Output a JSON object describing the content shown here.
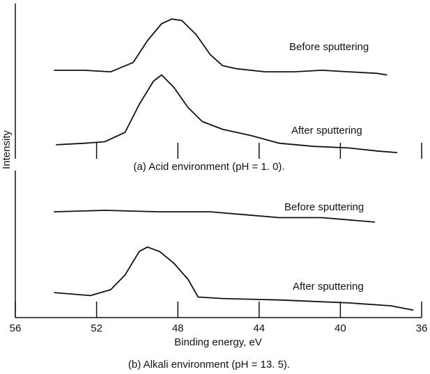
{
  "chart_data": [
    {
      "type": "line",
      "caption": "(a) Acid environment (pH = 1. 0).",
      "ylabel": "Intensity",
      "xlim": [
        56,
        36
      ],
      "xticks": [
        52,
        48,
        44,
        40,
        36
      ],
      "xtick_labels": false,
      "ylim": [
        0,
        100
      ],
      "series": [
        {
          "name": "Before sputtering",
          "color": "#111111",
          "x": [
            54.1,
            52.6,
            51.3,
            50.2,
            49.5,
            48.8,
            48.3,
            47.8,
            47.1,
            46.4,
            45.8,
            45.1,
            43.7,
            42.3,
            40.9,
            39.6,
            38.2,
            37.7
          ],
          "values": [
            57,
            57,
            56,
            62,
            76,
            87,
            90,
            89,
            80,
            67,
            60,
            58,
            56,
            56,
            57,
            56,
            55,
            54
          ]
        },
        {
          "name": "After sputtering",
          "color": "#111111",
          "x": [
            54.0,
            52.6,
            51.6,
            50.6,
            49.9,
            49.2,
            48.8,
            48.2,
            47.5,
            46.8,
            45.8,
            44.4,
            43.0,
            41.3,
            39.6,
            38.2,
            37.2
          ],
          "values": [
            9,
            10,
            11,
            17,
            35,
            50,
            54,
            46,
            33,
            24,
            19,
            15,
            10,
            8,
            7,
            5,
            4
          ]
        }
      ]
    },
    {
      "type": "line",
      "caption": "(b) Alkali environment (pH = 13. 5).",
      "xlabel": "Binding energy, eV",
      "xlim": [
        56,
        36
      ],
      "xticks": [
        56,
        52,
        48,
        44,
        40,
        36
      ],
      "xtick_labels": true,
      "ylim": [
        0,
        100
      ],
      "series": [
        {
          "name": "Before sputtering",
          "color": "#111111",
          "x": [
            54.1,
            51.6,
            48.9,
            46.4,
            44.7,
            43.0,
            40.9,
            38.3
          ],
          "values": [
            72,
            73,
            72,
            72,
            70,
            68,
            68,
            65
          ]
        },
        {
          "name": "After sputtering",
          "color": "#111111",
          "x": [
            54.1,
            52.3,
            51.3,
            50.6,
            49.9,
            49.5,
            48.9,
            48.2,
            47.5,
            47.0,
            45.8,
            43.0,
            41.3,
            39.6,
            37.5,
            36.4
          ],
          "values": [
            17,
            15,
            19,
            29,
            45,
            48,
            45,
            37,
            26,
            14,
            13,
            12,
            11,
            10,
            8,
            5
          ]
        }
      ]
    }
  ]
}
